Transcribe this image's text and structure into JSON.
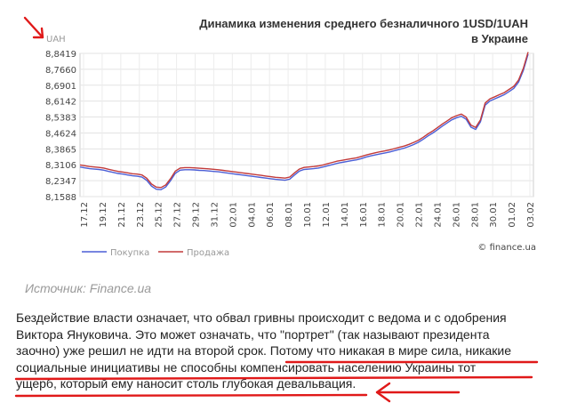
{
  "chart_data": {
    "type": "line",
    "title": "Динамика изменения среднего безналичного 1USD/1UAH",
    "subtitle": "в Украине",
    "unit_label": "UAH",
    "y_ticks": [
      "8,8419",
      "8,7660",
      "8,6901",
      "8,6142",
      "8,5383",
      "8,4624",
      "8,3865",
      "8,3106",
      "8,2347",
      "8,1588"
    ],
    "ylim": [
      8.1588,
      8.8419
    ],
    "x_ticks": [
      "17.12",
      "19.12",
      "21.12",
      "23.12",
      "25.12",
      "27.12",
      "29.12",
      "31.12",
      "02.01",
      "04.01",
      "06.01",
      "08.01",
      "10.01",
      "12.01",
      "14.01",
      "16.01",
      "18.01",
      "20.01",
      "22.01",
      "24.01",
      "26.01",
      "28.01",
      "30.01",
      "01.02",
      "03.02"
    ],
    "watermark": "© finance.ua",
    "series": [
      {
        "name": "Покупка",
        "color": "#4c5fd6",
        "values": [
          8.3,
          8.296,
          8.292,
          8.29,
          8.288,
          8.285,
          8.279,
          8.274,
          8.269,
          8.266,
          8.262,
          8.258,
          8.256,
          8.252,
          8.236,
          8.209,
          8.194,
          8.192,
          8.205,
          8.235,
          8.27,
          8.285,
          8.287,
          8.287,
          8.286,
          8.284,
          8.283,
          8.281,
          8.279,
          8.277,
          8.274,
          8.271,
          8.268,
          8.265,
          8.262,
          8.259,
          8.256,
          8.253,
          8.25,
          8.247,
          8.244,
          8.241,
          8.239,
          8.237,
          8.242,
          8.262,
          8.28,
          8.288,
          8.29,
          8.292,
          8.295,
          8.3,
          8.306,
          8.312,
          8.318,
          8.322,
          8.326,
          8.33,
          8.334,
          8.34,
          8.347,
          8.353,
          8.358,
          8.363,
          8.367,
          8.372,
          8.378,
          8.384,
          8.39,
          8.398,
          8.407,
          8.418,
          8.432,
          8.448,
          8.462,
          8.478,
          8.495,
          8.51,
          8.525,
          8.535,
          8.542,
          8.528,
          8.49,
          8.479,
          8.515,
          8.595,
          8.615,
          8.625,
          8.635,
          8.645,
          8.66,
          8.675,
          8.705,
          8.76,
          8.838
        ]
      },
      {
        "name": "Продажа",
        "color": "#c23a3a",
        "values": [
          8.31,
          8.306,
          8.302,
          8.3,
          8.298,
          8.295,
          8.289,
          8.284,
          8.279,
          8.276,
          8.272,
          8.268,
          8.266,
          8.262,
          8.246,
          8.219,
          8.204,
          8.202,
          8.215,
          8.245,
          8.28,
          8.295,
          8.297,
          8.297,
          8.296,
          8.294,
          8.293,
          8.291,
          8.289,
          8.287,
          8.284,
          8.281,
          8.278,
          8.275,
          8.272,
          8.269,
          8.266,
          8.263,
          8.26,
          8.257,
          8.254,
          8.251,
          8.249,
          8.247,
          8.252,
          8.272,
          8.29,
          8.298,
          8.3,
          8.302,
          8.305,
          8.31,
          8.316,
          8.322,
          8.328,
          8.332,
          8.336,
          8.34,
          8.344,
          8.35,
          8.357,
          8.363,
          8.368,
          8.373,
          8.377,
          8.382,
          8.388,
          8.394,
          8.4,
          8.408,
          8.417,
          8.428,
          8.442,
          8.458,
          8.472,
          8.488,
          8.505,
          8.52,
          8.535,
          8.545,
          8.552,
          8.538,
          8.5,
          8.489,
          8.525,
          8.605,
          8.625,
          8.635,
          8.645,
          8.655,
          8.67,
          8.685,
          8.715,
          8.77,
          8.848
        ]
      }
    ]
  },
  "source_text": "Источник: Finance.ua",
  "paragraph": [
    "Бездействие власти означает, что обвал гривны происходит с ведома и с одобрения",
    "Виктора Януковича. Это может означать, что \"портрет\" (так называют президента",
    "заочно) уже решил не идти на второй срок. Потому что никакая в мире сила, никакие",
    "социальные инициативы не способны компенсировать населению Украины тот",
    "ущерб, который ему наносит столь глубокая девальвация."
  ],
  "colors": {
    "annotation": "#e01919",
    "grid": "#d6d6d6",
    "text": "#222222"
  }
}
